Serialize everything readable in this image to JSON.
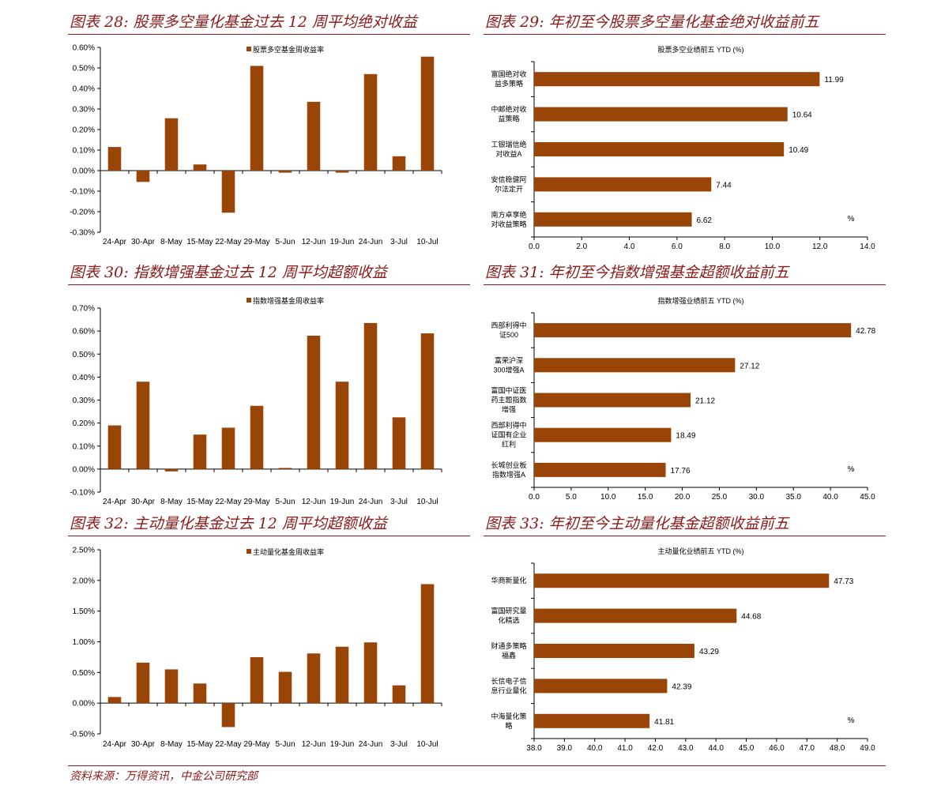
{
  "panels": [
    {
      "title": "图表 28:  股票多空量化基金过去 12 周平均绝对收益"
    },
    {
      "title": "图表 29:  年初至今股票多空量化基金绝对收益前五"
    },
    {
      "title": "图表 30:  指数增强基金过去 12 周平均超额收益"
    },
    {
      "title": "图表 31:  年初至今指数增强基金超额收益前五"
    },
    {
      "title": "图表 32:  主动量化基金过去 12 周平均超额收益"
    },
    {
      "title": "图表 33:  年初至今主动量化基金超额收益前五"
    }
  ],
  "source": "资料来源：万得资讯，中金公司研究部",
  "colors": {
    "bar": "#9a4508",
    "title": "#8b1a1a"
  },
  "chart_data": [
    {
      "type": "bar",
      "legend": "股票多空基金周收益率",
      "categories": [
        "24-Apr",
        "30-Apr",
        "8-May",
        "15-May",
        "22-May",
        "29-May",
        "5-Jun",
        "12-Jun",
        "19-Jun",
        "24-Jun",
        "3-Jul",
        "10-Jul"
      ],
      "values": [
        0.115,
        -0.055,
        0.255,
        0.03,
        -0.205,
        0.51,
        -0.01,
        0.335,
        -0.01,
        0.47,
        0.07,
        0.555
      ],
      "ylim": [
        -0.3,
        0.6
      ],
      "yticks": [
        "-0.30%",
        "-0.20%",
        "-0.10%",
        "0.00%",
        "0.10%",
        "0.20%",
        "0.30%",
        "0.40%",
        "0.50%",
        "0.60%"
      ]
    },
    {
      "type": "bar",
      "orientation": "horizontal",
      "title": "股票多空业绩前五 YTD (%)",
      "categories": [
        [
          "富国绝对收",
          "益多策略"
        ],
        [
          "中邮绝对收",
          "益策略"
        ],
        [
          "工银瑞信绝",
          "对收益A"
        ],
        [
          "安信稳健阿",
          "尔法定开"
        ],
        [
          "南方卓享绝",
          "对收益策略"
        ]
      ],
      "values": [
        11.99,
        10.64,
        10.49,
        7.44,
        6.62
      ],
      "value_labels": [
        "11.99",
        "10.64",
        "10.49",
        "7.44",
        "6.62"
      ],
      "xlim": [
        0,
        14
      ],
      "xticks": [
        "0.0",
        "2.0",
        "4.0",
        "6.0",
        "8.0",
        "10.0",
        "12.0",
        "14.0"
      ],
      "unit": "%"
    },
    {
      "type": "bar",
      "legend": "指数增强基金周收益率",
      "categories": [
        "24-Apr",
        "30-Apr",
        "8-May",
        "15-May",
        "22-May",
        "29-May",
        "5-Jun",
        "12-Jun",
        "19-Jun",
        "24-Jun",
        "3-Jul",
        "10-Jul"
      ],
      "values": [
        0.19,
        0.38,
        -0.01,
        0.15,
        0.18,
        0.275,
        0.005,
        0.58,
        0.38,
        0.635,
        0.225,
        0.59
      ],
      "ylim": [
        -0.1,
        0.7
      ],
      "yticks": [
        "-0.10%",
        "0.00%",
        "0.10%",
        "0.20%",
        "0.30%",
        "0.40%",
        "0.50%",
        "0.60%",
        "0.70%"
      ]
    },
    {
      "type": "bar",
      "orientation": "horizontal",
      "title": "指数增强业绩前五 YTD (%)",
      "categories": [
        [
          "西部利得中",
          "证500"
        ],
        [
          "富荣沪深",
          "300增强A"
        ],
        [
          "富国中证医",
          "药主题指数",
          "增强"
        ],
        [
          "西部利得中",
          "证国有企业",
          "红利"
        ],
        [
          "长城创业板",
          "指数增强A"
        ]
      ],
      "values": [
        42.78,
        27.12,
        21.12,
        18.49,
        17.76
      ],
      "value_labels": [
        "42.78",
        "27.12",
        "21.12",
        "18.49",
        "17.76"
      ],
      "xlim": [
        0,
        45
      ],
      "xticks": [
        "0.0",
        "5.0",
        "10.0",
        "15.0",
        "20.0",
        "25.0",
        "30.0",
        "35.0",
        "40.0",
        "45.0"
      ],
      "unit": "%"
    },
    {
      "type": "bar",
      "legend": "主动量化基金周收益率",
      "categories": [
        "24-Apr",
        "30-Apr",
        "8-May",
        "15-May",
        "22-May",
        "29-May",
        "5-Jun",
        "12-Jun",
        "19-Jun",
        "24-Jun",
        "3-Jul",
        "10-Jul"
      ],
      "values": [
        0.1,
        0.66,
        0.55,
        0.32,
        -0.39,
        0.75,
        0.51,
        0.81,
        0.92,
        0.99,
        0.29,
        1.94
      ],
      "ylim": [
        -0.5,
        2.5
      ],
      "yticks": [
        "-0.50%",
        "0.00%",
        "0.50%",
        "1.00%",
        "1.50%",
        "2.00%",
        "2.50%"
      ]
    },
    {
      "type": "bar",
      "orientation": "horizontal",
      "title": "主动量化业绩前五 YTD (%)",
      "categories": [
        [
          "华商新量化"
        ],
        [
          "富国研究量",
          "化精选"
        ],
        [
          "财通多策略",
          "福鑫"
        ],
        [
          "长信电子信",
          "息行业量化"
        ],
        [
          "中海量化策",
          "略"
        ]
      ],
      "values": [
        47.73,
        44.68,
        43.29,
        42.39,
        41.81
      ],
      "value_labels": [
        "47.73",
        "44.68",
        "43.29",
        "42.39",
        "41.81"
      ],
      "xlim": [
        38,
        49
      ],
      "xticks": [
        "38.0",
        "39.0",
        "40.0",
        "41.0",
        "42.0",
        "43.0",
        "44.0",
        "45.0",
        "46.0",
        "47.0",
        "48.0",
        "49.0"
      ],
      "unit": "%"
    }
  ]
}
